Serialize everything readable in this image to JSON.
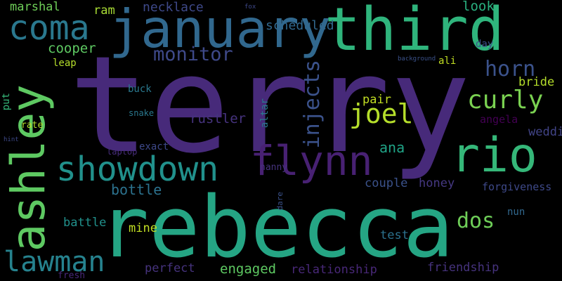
{
  "background": "#000000",
  "words": [
    {
      "text": "terry",
      "color": "#472a7a",
      "orientation": "h"
    },
    {
      "text": "rebecca",
      "color": "#25a584",
      "orientation": "h"
    },
    {
      "text": "january",
      "color": "#31688e",
      "orientation": "h"
    },
    {
      "text": "third",
      "color": "#2fb47c",
      "orientation": "h"
    },
    {
      "text": "ashley",
      "color": "#5ec962",
      "orientation": "v"
    },
    {
      "text": "rio",
      "color": "#35b779",
      "orientation": "h"
    },
    {
      "text": "coma",
      "color": "#2a788e",
      "orientation": "h"
    },
    {
      "text": "showdown",
      "color": "#21918c",
      "orientation": "h"
    },
    {
      "text": "flynn",
      "color": "#482173",
      "orientation": "h"
    },
    {
      "text": "lawman",
      "color": "#26828e",
      "orientation": "h"
    },
    {
      "text": "curly",
      "color": "#7ad151",
      "orientation": "h"
    },
    {
      "text": "joel",
      "color": "#b5de2b",
      "orientation": "h"
    },
    {
      "text": "injects",
      "color": "#3b528b",
      "orientation": "v"
    },
    {
      "text": "monitor",
      "color": "#3e4989",
      "orientation": "h"
    },
    {
      "text": "horn",
      "color": "#3b528b",
      "orientation": "h"
    },
    {
      "text": "dos",
      "color": "#6ece58",
      "orientation": "h"
    },
    {
      "text": "marshal",
      "color": "#6ece58",
      "orientation": "h"
    },
    {
      "text": "cooper",
      "color": "#5ec962",
      "orientation": "h"
    },
    {
      "text": "necklace",
      "color": "#3e4989",
      "orientation": "h"
    },
    {
      "text": "scheduled",
      "color": "#31688e",
      "orientation": "h"
    },
    {
      "text": "look",
      "color": "#29af7f",
      "orientation": "h"
    },
    {
      "text": "ram",
      "color": "#a8db34",
      "orientation": "h"
    },
    {
      "text": "rustler",
      "color": "#46337e",
      "orientation": "h"
    },
    {
      "text": "bride",
      "color": "#b5de2b",
      "orientation": "h"
    },
    {
      "text": "wedding",
      "color": "#414487",
      "orientation": "h"
    },
    {
      "text": "angela",
      "color": "#440154",
      "orientation": "h"
    },
    {
      "text": "ana",
      "color": "#20a386",
      "orientation": "h"
    },
    {
      "text": "pair",
      "color": "#c2df23",
      "orientation": "h"
    },
    {
      "text": "bottle",
      "color": "#2c728e",
      "orientation": "h"
    },
    {
      "text": "couple",
      "color": "#3b528b",
      "orientation": "h"
    },
    {
      "text": "honey",
      "color": "#453882",
      "orientation": "h"
    },
    {
      "text": "forgiveness",
      "color": "#3e4989",
      "orientation": "h"
    },
    {
      "text": "engaged",
      "color": "#5ec962",
      "orientation": "h"
    },
    {
      "text": "relationship",
      "color": "#482878",
      "orientation": "h"
    },
    {
      "text": "friendship",
      "color": "#46337e",
      "orientation": "h"
    },
    {
      "text": "perfect",
      "color": "#46337e",
      "orientation": "h"
    },
    {
      "text": "battle",
      "color": "#21918c",
      "orientation": "h"
    },
    {
      "text": "mine",
      "color": "#c2df23",
      "orientation": "h"
    },
    {
      "text": "test",
      "color": "#2c728e",
      "orientation": "h"
    },
    {
      "text": "nun",
      "color": "#31688e",
      "orientation": "h"
    },
    {
      "text": "ali",
      "color": "#c2df23",
      "orientation": "h"
    },
    {
      "text": "day",
      "color": "#3b528b",
      "orientation": "h"
    },
    {
      "text": "buck",
      "color": "#2a788e",
      "orientation": "h"
    },
    {
      "text": "leap",
      "color": "#b5de2b",
      "orientation": "h"
    },
    {
      "text": "put",
      "color": "#35b779",
      "orientation": "v"
    },
    {
      "text": "rate",
      "color": "#b5de2b",
      "orientation": "h"
    },
    {
      "text": "snake",
      "color": "#2a788e",
      "orientation": "h"
    },
    {
      "text": "exact",
      "color": "#3e4989",
      "orientation": "h"
    },
    {
      "text": "laptop",
      "color": "#472d7b",
      "orientation": "h"
    },
    {
      "text": "nanny",
      "color": "#46337e",
      "orientation": "h"
    },
    {
      "text": "altar",
      "color": "#2a788e",
      "orientation": "v"
    },
    {
      "text": "dare",
      "color": "#3b528b",
      "orientation": "v"
    },
    {
      "text": "fresh",
      "color": "#482878",
      "orientation": "h"
    },
    {
      "text": "fox",
      "color": "#3e4989",
      "orientation": "h"
    },
    {
      "text": "background",
      "color": "#3b528b",
      "orientation": "h"
    },
    {
      "text": "hint",
      "color": "#3e4989",
      "orientation": "h"
    }
  ]
}
